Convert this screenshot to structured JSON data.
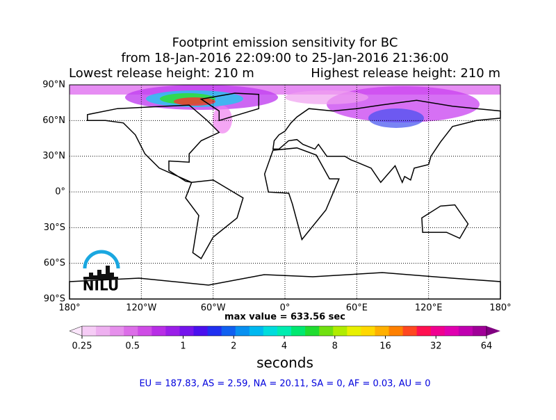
{
  "title": [
    "Footprint emission sensitivity for BC",
    "from 18-Jan-2016 22:09:00 to 25-Jan-2016 21:36:00"
  ],
  "release_heights": [
    "Lowest release height: 210 m",
    "Highest release height: 210 m"
  ],
  "map": {
    "xlim": [
      -180,
      180
    ],
    "ylim": [
      -90,
      90
    ],
    "xticks": [
      {
        "value": -180,
        "label": "180°"
      },
      {
        "value": -120,
        "label": "120°W"
      },
      {
        "value": -60,
        "label": "60°W"
      },
      {
        "value": 0,
        "label": "0°"
      },
      {
        "value": 60,
        "label": "60°E"
      },
      {
        "value": 120,
        "label": "120°E"
      },
      {
        "value": 180,
        "label": "180°"
      }
    ],
    "yticks": [
      {
        "value": 90,
        "label": "90°N"
      },
      {
        "value": 60,
        "label": "60°N"
      },
      {
        "value": 30,
        "label": "30°N"
      },
      {
        "value": 0,
        "label": "0°"
      },
      {
        "value": -30,
        "label": "30°S"
      },
      {
        "value": -60,
        "label": "60°S"
      },
      {
        "value": -90,
        "label": "90°S"
      }
    ],
    "grid": true
  },
  "max_value": "max value = 633.56 sec",
  "colorbar": {
    "scale": "log",
    "lim": [
      0.25,
      64
    ],
    "ticks": [
      0.25,
      0.5,
      1,
      2,
      4,
      8,
      16,
      32,
      64
    ],
    "label": "seconds",
    "colors": [
      "#fbe6fb",
      "#f6ccf6",
      "#eeb0f0",
      "#e690ec",
      "#dc6ee8",
      "#cf4ce6",
      "#b82ee6",
      "#9a1ee8",
      "#7414ec",
      "#4a10ee",
      "#2030f0",
      "#1060f0",
      "#0890f0",
      "#00b8f0",
      "#00dcdc",
      "#00ecb0",
      "#00e870",
      "#20dc30",
      "#70e010",
      "#b0ec00",
      "#e8f000",
      "#ffd800",
      "#ffb000",
      "#ff8000",
      "#ff4820",
      "#ff1050",
      "#f00090",
      "#e000b0",
      "#c000b0",
      "#a00098",
      "#800080"
    ]
  },
  "regions": "EU = 187.83,  AS = 2.59,  NA = 20.11,  SA = 0,  AF = 0.03,  AU = 0",
  "logo": "NILU"
}
